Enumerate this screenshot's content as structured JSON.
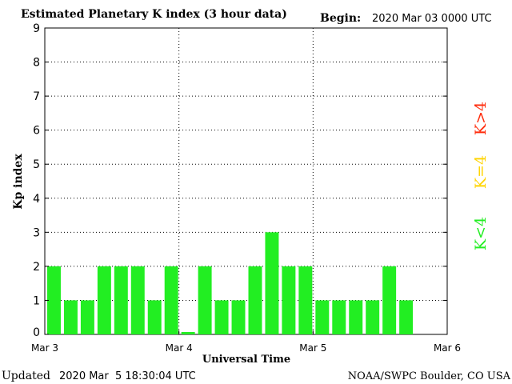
{
  "header": {
    "title": "Estimated Planetary K index (3 hour data)",
    "begin_label": "Begin:",
    "begin_value": "2020 Mar 03 0000 UTC"
  },
  "footer": {
    "updated_label": "Updated",
    "updated_value": "2020 Mar  5 18:30:04 UTC",
    "credit": "NOAA/SWPC Boulder, CO USA"
  },
  "legend": {
    "high": {
      "label": "K>4",
      "color": "#ff2a0a"
    },
    "equal": {
      "label": "K=4",
      "color": "#ffd400"
    },
    "low": {
      "label": "K<4",
      "color": "#22ee22"
    }
  },
  "chart_data": {
    "type": "bar",
    "title": "Estimated Planetary K index (3 hour data)",
    "xlabel": "Universal Time",
    "ylabel": "Kp index",
    "ylim": [
      0,
      9
    ],
    "yticks": [
      "0",
      "1",
      "2",
      "3",
      "4",
      "5",
      "6",
      "7",
      "8",
      "9"
    ],
    "xticks": [
      "Mar 3",
      "Mar 4",
      "Mar 5",
      "Mar 6"
    ],
    "slots_total": 24,
    "values": [
      2,
      1,
      1,
      2,
      2,
      2,
      1,
      2,
      0.07,
      2,
      1,
      1,
      2,
      3,
      2,
      2,
      1,
      1,
      1,
      1,
      2,
      1
    ],
    "bar_color": "#22ee22",
    "grid": true
  }
}
